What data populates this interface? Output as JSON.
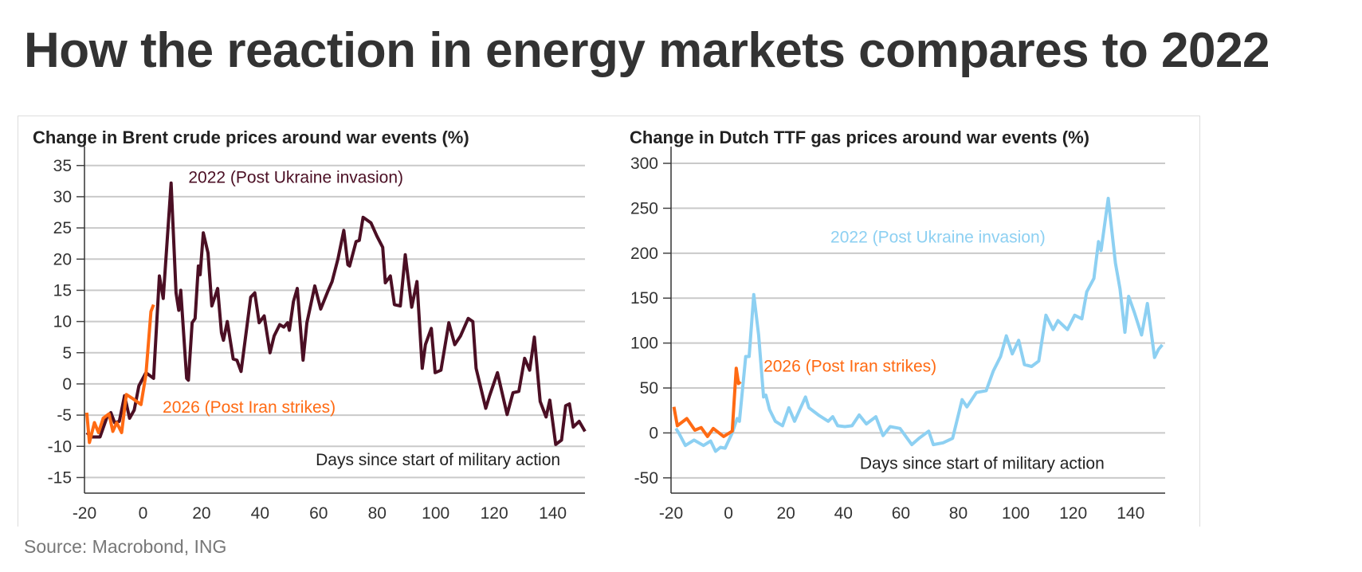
{
  "title": "How the reaction in energy markets compares to 2022",
  "source": "Source: Macrobond, ING",
  "colors": {
    "s2022_brent": "#4b0f24",
    "s2022_ttf": "#8dd0f2",
    "s2026": "#ff6a13",
    "grid": "#c9c9c9"
  },
  "chart_data": [
    {
      "type": "line",
      "title": "Change in Brent crude prices around war events (%)",
      "xlabel": "Days since start of military action",
      "ylabel": "",
      "xlim": [
        -20,
        151
      ],
      "ylim": [
        -17.5,
        36.5
      ],
      "xticks": [
        -20,
        0,
        20,
        40,
        60,
        80,
        100,
        120,
        140
      ],
      "yticks": [
        35,
        30,
        25,
        20,
        15,
        10,
        5,
        0,
        -5,
        -10,
        -15
      ],
      "grid": true,
      "annotations": [
        {
          "text": "2022 (Post Ukraine invasion)",
          "x": 15.5,
          "y": 32.2,
          "series": 0
        },
        {
          "text": "2026 (Post Iran strikes)",
          "x": 6.7,
          "y": -4.6,
          "series": 1
        },
        {
          "text": "Days since start of military action",
          "x": 59,
          "y": -13,
          "series": -1
        }
      ],
      "series": [
        {
          "name": "2022 (Post Ukraine invasion)",
          "color_key": "s2022_brent",
          "points": [
            [
              -19.2,
              -7.8
            ],
            [
              -17.6,
              -8.5
            ],
            [
              -14.7,
              -8.5
            ],
            [
              -12.3,
              -5.3
            ],
            [
              -11,
              -4.6
            ],
            [
              -9.7,
              -6.2
            ],
            [
              -8.1,
              -6
            ],
            [
              -6.3,
              -1.9
            ],
            [
              -4.6,
              -5.5
            ],
            [
              -3,
              -4.2
            ],
            [
              -1.4,
              -0.3
            ],
            [
              1,
              1.8
            ],
            [
              3.6,
              0.9
            ],
            [
              5.6,
              17.3
            ],
            [
              6.9,
              13.7
            ],
            [
              9.6,
              32.2
            ],
            [
              11.3,
              14.6
            ],
            [
              12.2,
              11.8
            ],
            [
              12.9,
              15
            ],
            [
              14.9,
              0.9
            ],
            [
              15.5,
              0.6
            ],
            [
              16.8,
              9.8
            ],
            [
              17.8,
              10.5
            ],
            [
              18.9,
              18.9
            ],
            [
              19.5,
              17.5
            ],
            [
              20.6,
              24.2
            ],
            [
              22.2,
              21
            ],
            [
              23.5,
              12.5
            ],
            [
              25.5,
              15.3
            ],
            [
              26.8,
              8.2
            ],
            [
              27.5,
              7
            ],
            [
              28.8,
              10
            ],
            [
              30.8,
              4
            ],
            [
              32.1,
              3.8
            ],
            [
              33.5,
              2
            ],
            [
              36.8,
              13.9
            ],
            [
              38.2,
              14.6
            ],
            [
              39.7,
              9.8
            ],
            [
              41.4,
              10.9
            ],
            [
              43.4,
              5
            ],
            [
              44.8,
              7.7
            ],
            [
              46.7,
              9.5
            ],
            [
              48.1,
              9.1
            ],
            [
              49.4,
              9.8
            ],
            [
              50,
              8.6
            ],
            [
              51.4,
              13.2
            ],
            [
              52.7,
              15.3
            ],
            [
              54.7,
              3.8
            ],
            [
              56,
              9.8
            ],
            [
              58.7,
              15.7
            ],
            [
              60.7,
              12
            ],
            [
              63.3,
              15
            ],
            [
              64.6,
              16.4
            ],
            [
              66.6,
              20
            ],
            [
              68.6,
              24.6
            ],
            [
              70,
              19.1
            ],
            [
              70.6,
              18.9
            ],
            [
              72.8,
              22.8
            ],
            [
              73.9,
              23
            ],
            [
              75.2,
              26.7
            ],
            [
              77.9,
              25.8
            ],
            [
              79.9,
              23.7
            ],
            [
              81.9,
              21.9
            ],
            [
              82.8,
              16.2
            ],
            [
              84.5,
              17.3
            ],
            [
              85.9,
              12.7
            ],
            [
              87.9,
              12.5
            ],
            [
              89.6,
              20.7
            ],
            [
              91.8,
              12.3
            ],
            [
              93.6,
              16.4
            ],
            [
              95.4,
              2.5
            ],
            [
              96.5,
              6.3
            ],
            [
              98.5,
              8.9
            ],
            [
              99.8,
              1.8
            ],
            [
              101.8,
              2.2
            ],
            [
              104.5,
              9.8
            ],
            [
              106.5,
              6.3
            ],
            [
              108.5,
              7.7
            ],
            [
              111.1,
              10.5
            ],
            [
              112.7,
              10
            ],
            [
              113.8,
              2.5
            ],
            [
              117.1,
              -3.9
            ],
            [
              118.4,
              -1.9
            ],
            [
              121.1,
              1.8
            ],
            [
              124.4,
              -4.9
            ],
            [
              126.4,
              -1.4
            ],
            [
              128.4,
              -1.2
            ],
            [
              130.4,
              4.1
            ],
            [
              132.1,
              2.2
            ],
            [
              133.7,
              7.5
            ],
            [
              135.7,
              -2.8
            ],
            [
              137.7,
              -5.3
            ],
            [
              139,
              -2.6
            ],
            [
              141,
              -9.7
            ],
            [
              143,
              -9
            ],
            [
              144.4,
              -3.5
            ],
            [
              145.7,
              -3.2
            ],
            [
              147,
              -6.9
            ],
            [
              149,
              -6
            ],
            [
              151,
              -7.6
            ]
          ]
        },
        {
          "name": "2026 (Post Iran strikes)",
          "color_key": "s2026",
          "points": [
            [
              -19.2,
              -4.6
            ],
            [
              -18.3,
              -9.4
            ],
            [
              -16.6,
              -6.2
            ],
            [
              -15.2,
              -7.8
            ],
            [
              -13.6,
              -5.5
            ],
            [
              -11.6,
              -4.8
            ],
            [
              -10.3,
              -7.6
            ],
            [
              -9,
              -6.2
            ],
            [
              -7.3,
              -7.8
            ],
            [
              -5.7,
              -1.7
            ],
            [
              -3.7,
              -2.3
            ],
            [
              -0.7,
              -3.3
            ],
            [
              1,
              1.5
            ],
            [
              2.7,
              11.6
            ],
            [
              3.6,
              12.7
            ]
          ]
        }
      ]
    },
    {
      "type": "line",
      "title": "Change in Dutch TTF gas prices around war events (%)",
      "xlabel": "Days since start of military action",
      "ylabel": "",
      "xlim": [
        -20,
        152
      ],
      "ylim": [
        -67,
        308
      ],
      "xticks": [
        -20,
        0,
        20,
        40,
        60,
        80,
        100,
        120,
        140
      ],
      "yticks": [
        300,
        250,
        200,
        150,
        100,
        50,
        0,
        -50
      ],
      "grid": true,
      "annotations": [
        {
          "text": "2022 (Post Ukraine invasion)",
          "x": 35.5,
          "y": 212,
          "series": 0
        },
        {
          "text": "2026 (Post Iran strikes)",
          "x": 12.2,
          "y": 68,
          "series": 1
        },
        {
          "text": "Days since start of military action",
          "x": 45.7,
          "y": -40,
          "series": -1
        }
      ],
      "series": [
        {
          "name": "2022 (Post Ukraine invasion)",
          "color_key": "s2022_ttf",
          "points": [
            [
              -18.3,
              5
            ],
            [
              -17.3,
              0
            ],
            [
              -15,
              -14
            ],
            [
              -12,
              -8
            ],
            [
              -8.7,
              -14
            ],
            [
              -6.2,
              -9
            ],
            [
              -4.5,
              -20.5
            ],
            [
              -2.8,
              -16
            ],
            [
              -1.2,
              -17
            ],
            [
              1.3,
              0
            ],
            [
              3,
              16
            ],
            [
              3.8,
              13
            ],
            [
              6,
              85
            ],
            [
              7.2,
              85
            ],
            [
              8.8,
              154
            ],
            [
              10.5,
              109
            ],
            [
              12.2,
              40
            ],
            [
              13,
              42
            ],
            [
              14.3,
              26
            ],
            [
              16.3,
              13
            ],
            [
              18.8,
              8
            ],
            [
              21,
              28
            ],
            [
              23,
              13
            ],
            [
              26.8,
              40
            ],
            [
              28,
              28
            ],
            [
              31.3,
              20
            ],
            [
              34.7,
              13
            ],
            [
              36.3,
              18
            ],
            [
              38,
              8
            ],
            [
              40.5,
              7
            ],
            [
              43,
              8
            ],
            [
              45.5,
              20
            ],
            [
              48,
              10
            ],
            [
              51.3,
              18
            ],
            [
              53.8,
              -3
            ],
            [
              56.3,
              7
            ],
            [
              59.7,
              5
            ],
            [
              63.8,
              -13
            ],
            [
              66.3,
              -6
            ],
            [
              69.7,
              2
            ],
            [
              71.3,
              -13
            ],
            [
              74.7,
              -11
            ],
            [
              78,
              -6
            ],
            [
              81.3,
              37
            ],
            [
              83,
              29
            ],
            [
              86.3,
              45
            ],
            [
              89.7,
              47
            ],
            [
              92.2,
              69
            ],
            [
              94.7,
              85
            ],
            [
              96.7,
              108
            ],
            [
              98.8,
              88
            ],
            [
              101,
              103
            ],
            [
              103,
              76
            ],
            [
              105.5,
              74
            ],
            [
              108,
              80
            ],
            [
              110.5,
              131
            ],
            [
              113,
              115
            ],
            [
              114.7,
              125
            ],
            [
              118,
              115
            ],
            [
              120.5,
              131
            ],
            [
              123,
              127
            ],
            [
              124.7,
              157
            ],
            [
              127.2,
              172
            ],
            [
              128.8,
              213
            ],
            [
              129.7,
              203
            ],
            [
              132.2,
              261
            ],
            [
              134.7,
              189
            ],
            [
              136.3,
              160
            ],
            [
              138,
              112
            ],
            [
              139.3,
              152
            ],
            [
              141.3,
              134
            ],
            [
              143.8,
              109
            ],
            [
              145.8,
              144
            ],
            [
              148.3,
              84
            ],
            [
              149.7,
              93
            ],
            [
              151,
              98
            ]
          ]
        },
        {
          "name": "2026 (Post Iran strikes)",
          "color_key": "s2026",
          "points": [
            [
              -19,
              29
            ],
            [
              -17.8,
              8
            ],
            [
              -14.5,
              16
            ],
            [
              -11.7,
              3
            ],
            [
              -9.5,
              6
            ],
            [
              -7.3,
              -4
            ],
            [
              -5.3,
              5
            ],
            [
              -3.3,
              0
            ],
            [
              -1.7,
              -4
            ],
            [
              1.3,
              2
            ],
            [
              2.7,
              72
            ],
            [
              3.5,
              55
            ],
            [
              4.2,
              57
            ]
          ]
        }
      ]
    }
  ]
}
